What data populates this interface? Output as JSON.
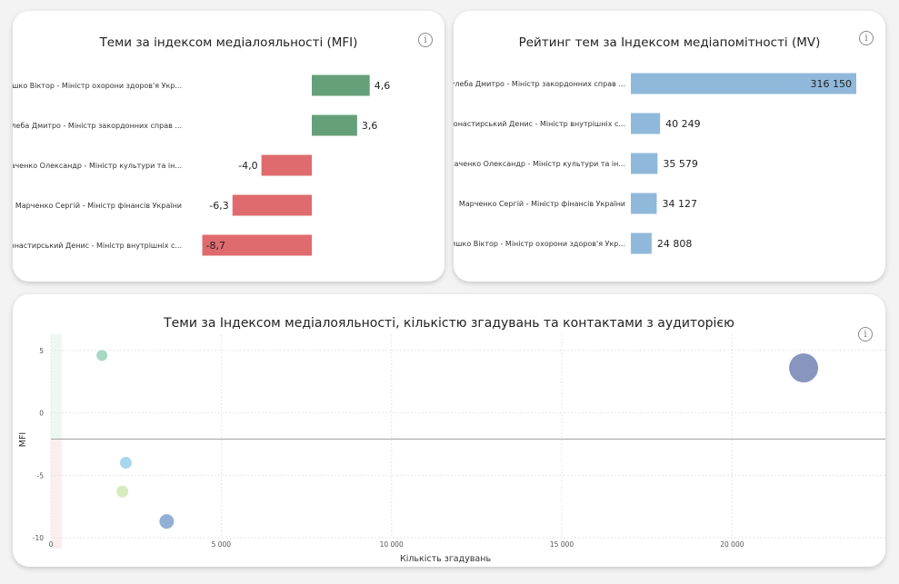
{
  "mfi_card": {
    "title": "Теми за індексом медіалояльності (MFI)",
    "info_icon": "info-icon"
  },
  "mv_card": {
    "title": "Рейтинг тем за Індексом медіапомітності (MV)",
    "info_icon": "info-icon"
  },
  "scatter_card": {
    "title": "Теми за Індексом медіалояльності, кількістю згадувань та контактами з аудиторією",
    "info_icon": "info-icon"
  },
  "chart_data": [
    {
      "type": "bar",
      "orientation": "horizontal",
      "title": "Теми за індексом медіалояльності (MFI)",
      "categories": [
        "Ляшко Віктор - Міністр охорони здоров'я Укр...",
        "Кулеба Дмитро - Міністр закордонних справ ...",
        "Ткаченко Олександр - Міністр культури та ін...",
        "Марченко Сергій - Міністр фінансів України",
        "Монастирський Денис - Міністр внутрішніх с..."
      ],
      "values": [
        4.6,
        3.6,
        -4.0,
        -6.3,
        -8.7
      ],
      "value_labels": [
        "4,6",
        "3,6",
        "-4,0",
        "-6,3",
        "-8,7"
      ],
      "colors": {
        "positive": "#65a07a",
        "negative": "#e06b6e"
      },
      "xlim": [
        -10,
        5
      ]
    },
    {
      "type": "bar",
      "orientation": "horizontal",
      "title": "Рейтинг тем за Індексом медіапомітності (MV)",
      "categories": [
        "Кулеба Дмитро - Міністр закордонних справ ...",
        "Монастирський Денис - Міністр внутрішніх с...",
        "Ткаченко Олександр - Міністр культури та ін...",
        "Марченко Сергій - Міністр фінансів України",
        "Ляшко Віктор - Міністр охорони здоров'я Укр..."
      ],
      "values": [
        316150,
        40249,
        35579,
        34127,
        24808
      ],
      "value_labels": [
        "316 150",
        "40 249",
        "35 579",
        "34 127",
        "24 808"
      ],
      "colors": {
        "bar": "#90b8da"
      },
      "xlim": [
        0,
        316150
      ]
    },
    {
      "type": "scatter",
      "title": "Теми за Індексом медіалояльності, кількістю згадувань та контактами з аудиторією",
      "xlabel": "Кількість згадувань",
      "ylabel": "MFI",
      "xlim": [
        0,
        24500
      ],
      "ylim": [
        -10,
        6.3
      ],
      "xticks": [
        0,
        5000,
        10000,
        15000,
        20000
      ],
      "xtick_labels": [
        "0",
        "5 000",
        "10 000",
        "15 000",
        "20 000"
      ],
      "yticks": [
        5,
        0,
        -5,
        -10
      ],
      "ytick_labels": [
        "5",
        "0",
        "-5",
        "-10"
      ],
      "reference_line_y": -2.1,
      "points": [
        {
          "x": 1500,
          "y": 4.6,
          "size": 6,
          "color": "#a6d8c4"
        },
        {
          "x": 22100,
          "y": 3.6,
          "size": 16,
          "color": "#8896bf"
        },
        {
          "x": 2200,
          "y": -4.0,
          "size": 6.5,
          "color": "#a8d6ea"
        },
        {
          "x": 2100,
          "y": -6.3,
          "size": 6.5,
          "color": "#d6ecbf"
        },
        {
          "x": 3400,
          "y": -8.7,
          "size": 8,
          "color": "#90b0d6"
        }
      ],
      "grid": true
    }
  ]
}
